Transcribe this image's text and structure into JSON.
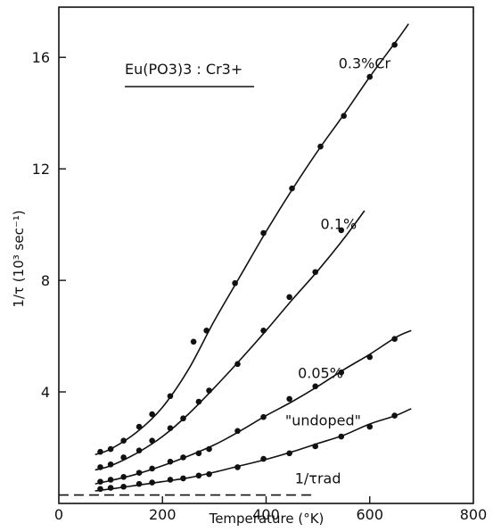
{
  "chart_data": {
    "type": "scatter",
    "title": "Eu(PO3)3 : Cr3+",
    "xlabel": "Temperature (°K)",
    "ylabel": "1/τ (10³ sec⁻¹)",
    "xlim": [
      0,
      800
    ],
    "ylim": [
      0,
      17.8
    ],
    "x_ticks": [
      0,
      200,
      400,
      600,
      800
    ],
    "y_ticks": [
      4,
      8,
      12,
      16
    ],
    "grid": false,
    "legend": "none",
    "series": [
      {
        "name": "0.3%Cr",
        "label_at": [
          590,
          15.6
        ],
        "points": [
          [
            80,
            1.85
          ],
          [
            100,
            1.95
          ],
          [
            125,
            2.25
          ],
          [
            155,
            2.75
          ],
          [
            180,
            3.2
          ],
          [
            215,
            3.85
          ],
          [
            260,
            5.8
          ],
          [
            285,
            6.2
          ],
          [
            340,
            7.9
          ],
          [
            395,
            9.7
          ],
          [
            450,
            11.3
          ],
          [
            505,
            12.8
          ],
          [
            550,
            13.9
          ],
          [
            600,
            15.3
          ],
          [
            648,
            16.45
          ]
        ],
        "curve": [
          [
            70,
            1.75
          ],
          [
            100,
            1.95
          ],
          [
            150,
            2.55
          ],
          [
            200,
            3.45
          ],
          [
            250,
            4.8
          ],
          [
            300,
            6.55
          ],
          [
            350,
            8.15
          ],
          [
            400,
            9.75
          ],
          [
            450,
            11.25
          ],
          [
            500,
            12.65
          ],
          [
            550,
            13.95
          ],
          [
            600,
            15.3
          ],
          [
            650,
            16.55
          ],
          [
            675,
            17.2
          ]
        ]
      },
      {
        "name": "0.1%",
        "label_at": [
          540,
          9.85
        ],
        "points": [
          [
            80,
            1.3
          ],
          [
            100,
            1.4
          ],
          [
            125,
            1.65
          ],
          [
            155,
            1.9
          ],
          [
            180,
            2.25
          ],
          [
            215,
            2.7
          ],
          [
            240,
            3.05
          ],
          [
            270,
            3.65
          ],
          [
            290,
            4.05
          ],
          [
            345,
            5.0
          ],
          [
            395,
            6.2
          ],
          [
            445,
            7.4
          ],
          [
            495,
            8.3
          ],
          [
            545,
            9.8
          ]
        ],
        "curve": [
          [
            70,
            1.2
          ],
          [
            100,
            1.35
          ],
          [
            150,
            1.8
          ],
          [
            200,
            2.4
          ],
          [
            250,
            3.2
          ],
          [
            300,
            4.15
          ],
          [
            350,
            5.15
          ],
          [
            400,
            6.2
          ],
          [
            450,
            7.3
          ],
          [
            500,
            8.35
          ],
          [
            550,
            9.5
          ],
          [
            590,
            10.5
          ]
        ]
      },
      {
        "name": "0.05%",
        "label_at": [
          505,
          4.5
        ],
        "points": [
          [
            80,
            0.78
          ],
          [
            100,
            0.85
          ],
          [
            125,
            0.95
          ],
          [
            155,
            1.1
          ],
          [
            180,
            1.25
          ],
          [
            215,
            1.5
          ],
          [
            240,
            1.65
          ],
          [
            270,
            1.8
          ],
          [
            290,
            1.95
          ],
          [
            345,
            2.6
          ],
          [
            395,
            3.1
          ],
          [
            445,
            3.75
          ],
          [
            495,
            4.2
          ],
          [
            545,
            4.7
          ],
          [
            600,
            5.25
          ],
          [
            648,
            5.9
          ]
        ],
        "curve": [
          [
            70,
            0.7
          ],
          [
            100,
            0.82
          ],
          [
            150,
            1.05
          ],
          [
            200,
            1.35
          ],
          [
            250,
            1.7
          ],
          [
            300,
            2.1
          ],
          [
            350,
            2.6
          ],
          [
            400,
            3.15
          ],
          [
            450,
            3.65
          ],
          [
            500,
            4.2
          ],
          [
            550,
            4.8
          ],
          [
            600,
            5.35
          ],
          [
            650,
            5.95
          ],
          [
            680,
            6.2
          ]
        ]
      },
      {
        "name": "\"undoped\"",
        "label_at": [
          510,
          2.8
        ],
        "points": [
          [
            80,
            0.52
          ],
          [
            100,
            0.56
          ],
          [
            125,
            0.6
          ],
          [
            155,
            0.7
          ],
          [
            180,
            0.75
          ],
          [
            215,
            0.85
          ],
          [
            240,
            0.9
          ],
          [
            270,
            1.0
          ],
          [
            290,
            1.05
          ],
          [
            345,
            1.3
          ],
          [
            395,
            1.6
          ],
          [
            445,
            1.8
          ],
          [
            495,
            2.05
          ],
          [
            545,
            2.4
          ],
          [
            600,
            2.75
          ],
          [
            648,
            3.15
          ]
        ],
        "curve": [
          [
            70,
            0.45
          ],
          [
            100,
            0.52
          ],
          [
            150,
            0.65
          ],
          [
            200,
            0.78
          ],
          [
            250,
            0.92
          ],
          [
            300,
            1.12
          ],
          [
            350,
            1.35
          ],
          [
            400,
            1.58
          ],
          [
            450,
            1.85
          ],
          [
            500,
            2.15
          ],
          [
            550,
            2.45
          ],
          [
            600,
            2.85
          ],
          [
            650,
            3.15
          ],
          [
            680,
            3.4
          ]
        ]
      },
      {
        "name": "1/τrad",
        "label_at": [
          500,
          0.72
        ],
        "style": "dashed",
        "curve": [
          [
            0,
            0.3
          ],
          [
            490,
            0.3
          ]
        ]
      }
    ]
  }
}
